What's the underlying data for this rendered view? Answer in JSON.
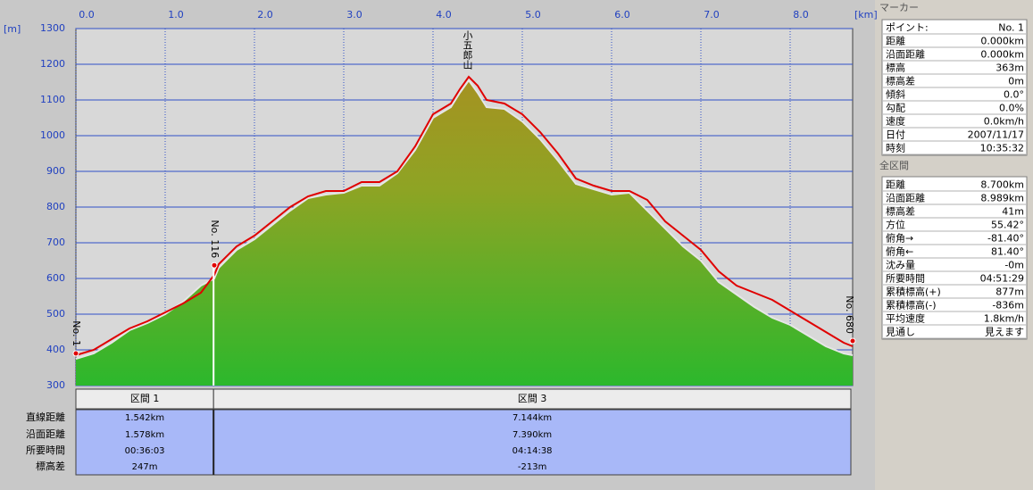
{
  "chart_data": {
    "type": "area",
    "x_unit": "[km]",
    "y_unit": "[m]",
    "x": [
      0,
      0.2,
      0.4,
      0.6,
      0.8,
      1.0,
      1.2,
      1.4,
      1.55,
      1.6,
      1.8,
      2.0,
      2.2,
      2.4,
      2.6,
      2.8,
      3.0,
      3.2,
      3.4,
      3.6,
      3.8,
      4.0,
      4.2,
      4.3,
      4.4,
      4.5,
      4.6,
      4.8,
      5.0,
      5.2,
      5.4,
      5.6,
      5.8,
      6.0,
      6.2,
      6.4,
      6.6,
      6.8,
      7.0,
      7.2,
      7.4,
      7.6,
      7.8,
      8.0,
      8.2,
      8.4,
      8.6,
      8.7
    ],
    "series": [
      {
        "color": "#e6e6e6",
        "values": [
          375,
          390,
          420,
          455,
          475,
          500,
          535,
          580,
          600,
          630,
          680,
          710,
          750,
          790,
          825,
          835,
          840,
          860,
          860,
          895,
          960,
          1050,
          1080,
          1120,
          1155,
          1120,
          1080,
          1075,
          1040,
          990,
          930,
          865,
          850,
          835,
          840,
          790,
          740,
          690,
          650,
          590,
          555,
          520,
          490,
          470,
          440,
          410,
          390,
          385
        ]
      },
      {
        "color": "#e00000",
        "values": [
          385,
          400,
          430,
          460,
          480,
          505,
          530,
          560,
          610,
          640,
          690,
          720,
          760,
          800,
          830,
          845,
          845,
          870,
          870,
          900,
          970,
          1060,
          1090,
          1130,
          1165,
          1140,
          1100,
          1090,
          1060,
          1010,
          950,
          880,
          860,
          845,
          845,
          820,
          760,
          720,
          680,
          620,
          580,
          560,
          540,
          510,
          480,
          450,
          420,
          410
        ]
      }
    ],
    "xlim": [
      0,
      8.7
    ],
    "xticks": [
      {
        "value": 0,
        "label": "0.0"
      },
      {
        "value": 1,
        "label": "1.0"
      },
      {
        "value": 2,
        "label": "2.0"
      },
      {
        "value": 3,
        "label": "3.0"
      },
      {
        "value": 4,
        "label": "4.0"
      },
      {
        "value": 5,
        "label": "5.0"
      },
      {
        "value": 6,
        "label": "6.0"
      },
      {
        "value": 7,
        "label": "7.0"
      },
      {
        "value": 8,
        "label": "8.0"
      }
    ],
    "ylim": [
      300,
      1300
    ],
    "yticks": [
      300,
      400,
      500,
      600,
      700,
      800,
      900,
      1000,
      1100,
      1200,
      1300
    ],
    "markers": [
      {
        "label": "No. 1",
        "x": 0,
        "y": 390
      },
      {
        "label": "No. 116",
        "x": 1.55,
        "y": 637
      },
      {
        "label": "No. 680",
        "x": 8.7,
        "y": 425
      }
    ],
    "peak": {
      "label": "小五郎山",
      "x": 4.38,
      "y": 1165
    },
    "section_boundaries": [
      1.542
    ]
  },
  "sections": {
    "row_labels": [
      "直線距離",
      "沿面距離",
      "所要時間",
      "標高差"
    ],
    "columns": [
      {
        "header": "区間 1",
        "values": [
          "1.542km",
          "1.578km",
          "00:36:03",
          "247m"
        ]
      },
      {
        "header": "区間 3",
        "values": [
          "7.144km",
          "7.390km",
          "04:14:38",
          "-213m"
        ]
      }
    ]
  },
  "marker_panel": {
    "title": "マーカー",
    "rows": [
      [
        "ポイント:",
        "No. 1"
      ],
      [
        "距離",
        "0.000km"
      ],
      [
        "沿面距離",
        "0.000km"
      ],
      [
        "標高",
        "363m"
      ],
      [
        "標高差",
        "0m"
      ],
      [
        "傾斜",
        "0.0°"
      ],
      [
        "勾配",
        "0.0%"
      ],
      [
        "速度",
        "0.0km/h"
      ],
      [
        "日付",
        "2007/11/17"
      ],
      [
        "時刻",
        "10:35:32"
      ]
    ]
  },
  "total_panel": {
    "title": "全区間",
    "rows": [
      [
        "距離",
        "8.700km"
      ],
      [
        "沿面距離",
        "8.989km"
      ],
      [
        "標高差",
        "41m"
      ],
      [
        "方位",
        "55.42°"
      ],
      [
        "俯角→",
        "-81.40°"
      ],
      [
        "俯角←",
        "81.40°"
      ],
      [
        "沈み量",
        "-0m"
      ],
      [
        "所要時間",
        "04:51:29"
      ],
      [
        "累積標高(+)",
        "877m"
      ],
      [
        "累積標高(-)",
        "-836m"
      ],
      [
        "平均速度",
        "1.8km/h"
      ],
      [
        "見通し",
        "見えます"
      ]
    ]
  }
}
